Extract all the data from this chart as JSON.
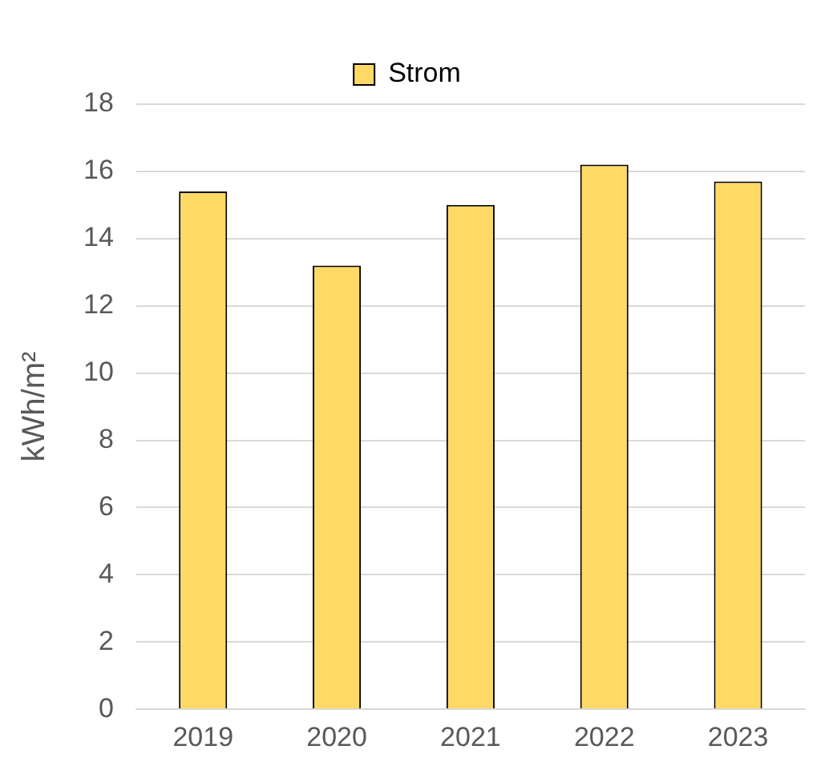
{
  "chart_data": {
    "type": "bar",
    "ylabel": "kWh/m²",
    "categories": [
      "2019",
      "2020",
      "2021",
      "2022",
      "2023"
    ],
    "series": [
      {
        "name": "Strom",
        "color": "#ffd966",
        "values": [
          15.4,
          13.2,
          15.0,
          16.2,
          15.7
        ]
      }
    ],
    "ylim": [
      0,
      18
    ],
    "yticks": [
      0,
      2,
      4,
      6,
      8,
      10,
      12,
      14,
      16,
      18
    ],
    "grid": "y",
    "legend": "top"
  }
}
